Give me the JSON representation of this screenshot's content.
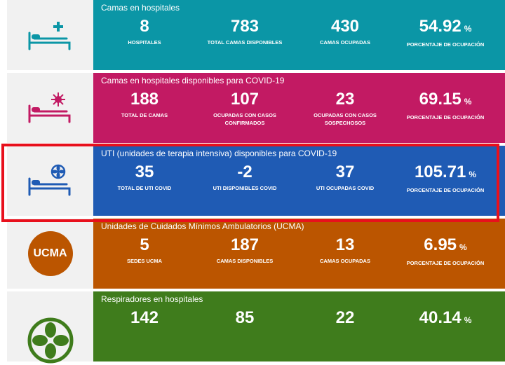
{
  "colors": {
    "teal": "#0b96a6",
    "magenta": "#c21a63",
    "blue": "#1f5bb4",
    "orange": "#bb5500",
    "green": "#3f7c1c",
    "highlight": "#e8101c"
  },
  "rows": [
    {
      "title": "Camas en hospitales",
      "icon": "hospital-bed-cross-icon",
      "stats": [
        {
          "value": "8",
          "label": "HOSPITALES"
        },
        {
          "value": "783",
          "label": "TOTAL CAMAS DISPONIBLES"
        },
        {
          "value": "430",
          "label": "CAMAS OCUPADAS"
        },
        {
          "value": "54.92",
          "unit": "%",
          "label": "PORCENTAJE DE OCUPACIÓN"
        }
      ]
    },
    {
      "title": "Camas en hospitales disponibles para COVID-19",
      "icon": "hospital-bed-virus-icon",
      "stats": [
        {
          "value": "188",
          "label": "TOTAL DE CAMAS"
        },
        {
          "value": "107",
          "label": "OCUPADAS CON CASOS CONFIRMADOS"
        },
        {
          "value": "23",
          "label": "OCUPADAS CON CASOS SOSPECHOSOS"
        },
        {
          "value": "69.15",
          "unit": "%",
          "label": "PORCENTAJE DE OCUPACIÓN"
        }
      ]
    },
    {
      "title": "UTI (unidades de terapia intensiva) disponibles para COVID-19",
      "icon": "icu-bed-icon",
      "stats": [
        {
          "value": "35",
          "label": "TOTAL DE UTI COVID"
        },
        {
          "value": "-2",
          "label": "UTI DISPONIBLES COVID"
        },
        {
          "value": "37",
          "label": "UTI OCUPADAS COVID"
        },
        {
          "value": "105.71",
          "unit": "%",
          "label": "PORCENTAJE DE OCUPACIÓN"
        }
      ]
    },
    {
      "title": "Unidades de Cuidados Mínimos Ambulatorios (UCMA)",
      "icon": "ucma-badge-icon",
      "badge": "UCMA",
      "stats": [
        {
          "value": "5",
          "label": "SEDES UCMA"
        },
        {
          "value": "187",
          "label": "CAMAS DISPONIBLES"
        },
        {
          "value": "13",
          "label": "CAMAS OCUPADAS"
        },
        {
          "value": "6.95",
          "unit": "%",
          "label": "PORCENTAJE DE OCUPACIÓN"
        }
      ]
    },
    {
      "title": "Respiradores en hospitales",
      "icon": "ventilator-fan-icon",
      "stats": [
        {
          "value": "142"
        },
        {
          "value": "85"
        },
        {
          "value": "22"
        },
        {
          "value": "40.14",
          "unit": "%"
        }
      ]
    }
  ]
}
